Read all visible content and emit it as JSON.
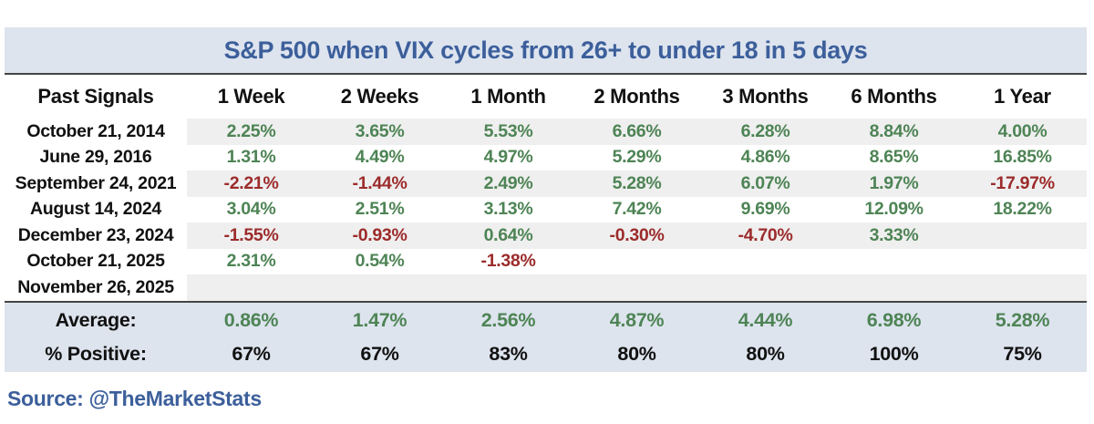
{
  "chart_data": {
    "type": "table",
    "title": "S&P 500 when VIX cycles from 26+ to under 18 in 5 days",
    "columns": [
      "Past Signals",
      "1 Week",
      "2 Weeks",
      "1 Month",
      "2 Months",
      "3 Months",
      "6 Months",
      "1 Year"
    ],
    "rows": [
      {
        "label": "October 21, 2014",
        "values": [
          "2.25%",
          "3.65%",
          "5.53%",
          "6.66%",
          "6.28%",
          "8.84%",
          "4.00%"
        ]
      },
      {
        "label": "June 29, 2016",
        "values": [
          "1.31%",
          "4.49%",
          "4.97%",
          "5.29%",
          "4.86%",
          "8.65%",
          "16.85%"
        ]
      },
      {
        "label": "September 24, 2021",
        "values": [
          "-2.21%",
          "-1.44%",
          "2.49%",
          "5.28%",
          "6.07%",
          "1.97%",
          "-17.97%"
        ]
      },
      {
        "label": "August 14, 2024",
        "values": [
          "3.04%",
          "2.51%",
          "3.13%",
          "7.42%",
          "9.69%",
          "12.09%",
          "18.22%"
        ]
      },
      {
        "label": "December 23, 2024",
        "values": [
          "-1.55%",
          "-0.93%",
          "0.64%",
          "-0.30%",
          "-4.70%",
          "3.33%",
          ""
        ]
      },
      {
        "label": "October 21, 2025",
        "values": [
          "2.31%",
          "0.54%",
          "-1.38%",
          "",
          "",
          "",
          ""
        ]
      },
      {
        "label": "November 26, 2025",
        "values": [
          "",
          "",
          "",
          "",
          "",
          "",
          ""
        ]
      }
    ],
    "summary": {
      "average_label": "Average:",
      "average_values": [
        "0.86%",
        "1.47%",
        "2.56%",
        "4.87%",
        "4.44%",
        "6.98%",
        "5.28%"
      ],
      "positive_label": "% Positive:",
      "positive_values": [
        "67%",
        "67%",
        "83%",
        "80%",
        "80%",
        "100%",
        "75%"
      ]
    },
    "source": "Source: @TheMarketStats",
    "layout_hints": {
      "striped_row_indices": [
        0,
        2,
        4,
        6
      ],
      "stripes_apply_to_value_columns_only": true,
      "value_alignment": "center"
    }
  },
  "colors": {
    "title_blue": "#3c5f9b",
    "band_blue": "#dde4ee",
    "band_gray": "#efefef",
    "green": "#4e8455",
    "red": "#9c2b2b",
    "border_dark": "#454545"
  }
}
